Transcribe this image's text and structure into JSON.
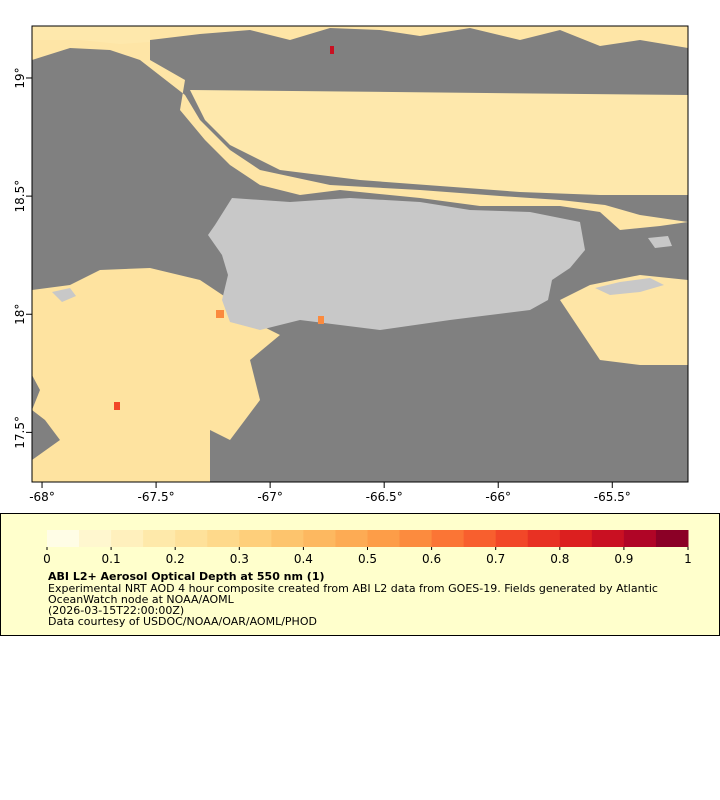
{
  "map": {
    "xlim": [
      -68.044,
      -65.168
    ],
    "ylim": [
      17.29,
      19.22
    ],
    "xticks": [
      {
        "value": -68,
        "label": "-68°"
      },
      {
        "value": -67.5,
        "label": "-67.5°"
      },
      {
        "value": -67,
        "label": "-67°"
      },
      {
        "value": -66.5,
        "label": "-66.5°"
      },
      {
        "value": -66,
        "label": "-66°"
      },
      {
        "value": -65.5,
        "label": "-65.5°"
      }
    ],
    "yticks": [
      {
        "value": 17.5,
        "label": "17.5°"
      },
      {
        "value": 18,
        "label": "18°"
      },
      {
        "value": 18.5,
        "label": "18.5°"
      },
      {
        "value": 19,
        "label": "19°"
      }
    ]
  },
  "colorbar": {
    "lim": [
      0,
      1
    ],
    "ticks": [
      0,
      0.1,
      0.2,
      0.3,
      0.4,
      0.5,
      0.6,
      0.7,
      0.8,
      0.9,
      1
    ],
    "colors": [
      "#fffde6",
      "#fff7cf",
      "#fff0bd",
      "#fee9aa",
      "#fee19a",
      "#fed98b",
      "#fecf7b",
      "#fdc46d",
      "#fdb860",
      "#fdab54",
      "#fd9d48",
      "#fc8b3e",
      "#fb7535",
      "#f85f2e",
      "#f24728",
      "#e83123",
      "#dc1f1f",
      "#c91022",
      "#b00526",
      "#8b0026"
    ]
  },
  "legend": {
    "title": "ABI L2+ Aerosol Optical Depth at 550 nm (1)",
    "lines": [
      "Experimental NRT AOD 4 hour composite created from ABI L2 data from GOES-19. Fields generated by Atlantic",
      "OceanWatch node at NOAA/AOML",
      "(2026-03-15T22:00:00Z)",
      "Data courtesy of USDOC/NOAA/OAR/AOML/PHOD"
    ]
  }
}
